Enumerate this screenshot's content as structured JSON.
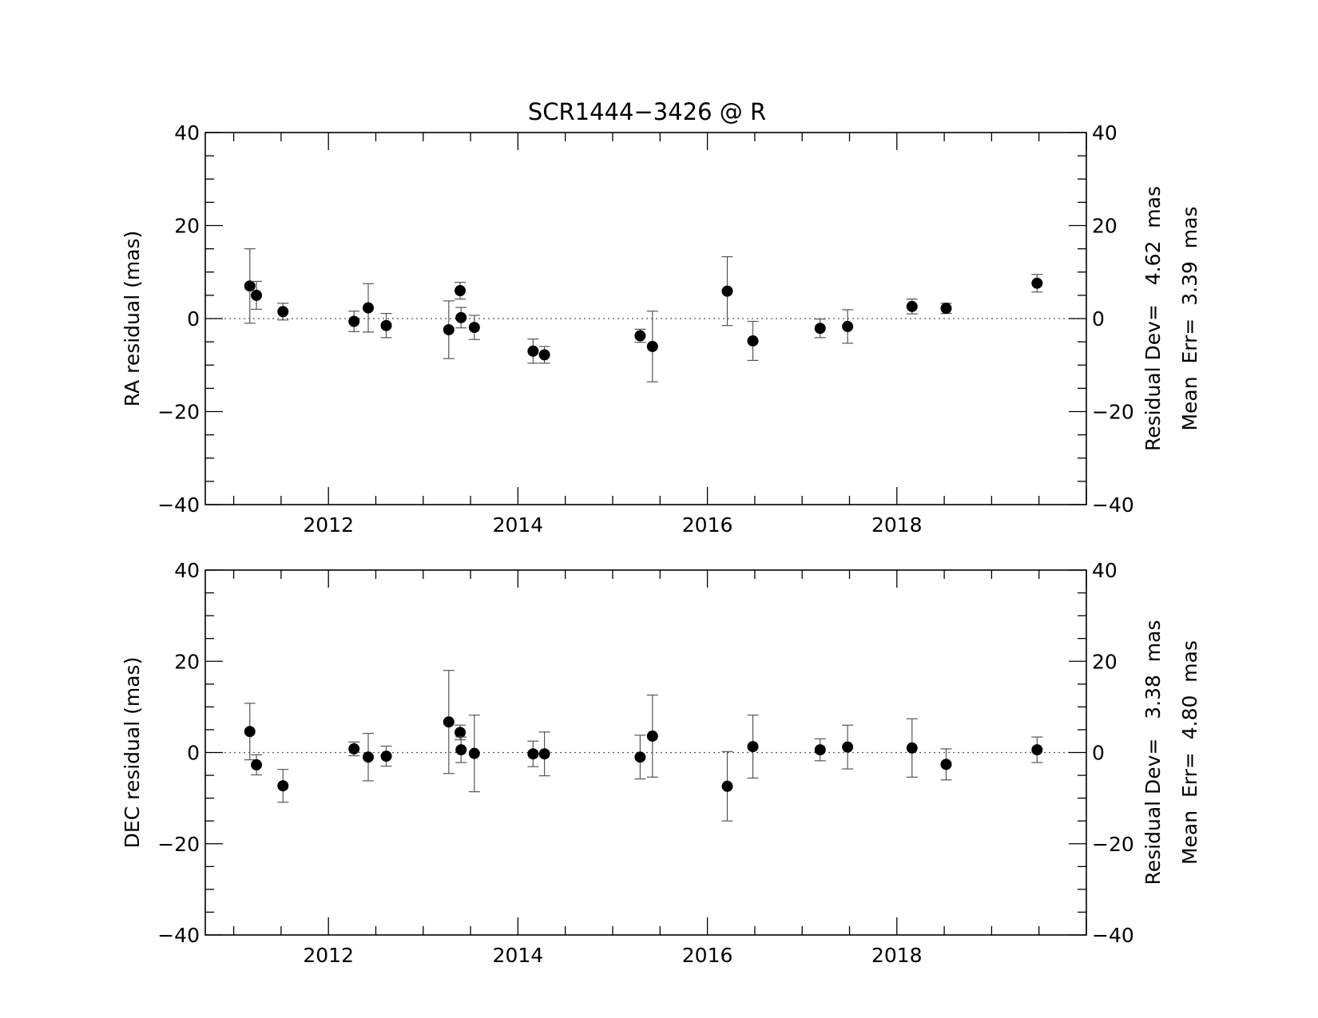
{
  "chart_data": [
    {
      "type": "scatter",
      "title": "SCR1444−3426 @ R",
      "ylabel": "RA residual (mas)",
      "xlim": [
        2010.7,
        2020.0
      ],
      "ylim": [
        -40,
        40
      ],
      "x_ticks": [
        2012,
        2014,
        2016,
        2018
      ],
      "x_tick_labels": [
        "2012",
        "2014",
        "2016",
        "2018"
      ],
      "y_ticks": [
        -40,
        -20,
        0,
        20,
        40
      ],
      "y_tick_labels": [
        "−40",
        "−20",
        "0",
        "20",
        "40"
      ],
      "stats": {
        "residual_dev": "Residual Dev=   4.62  mas",
        "mean_err": "Mean  Err=  3.39  mas"
      },
      "points": [
        {
          "x": 2011.17,
          "y": 7.0,
          "err": 8.0
        },
        {
          "x": 2011.24,
          "y": 5.0,
          "err": 3.0
        },
        {
          "x": 2011.52,
          "y": 1.5,
          "err": 1.8
        },
        {
          "x": 2012.27,
          "y": -0.6,
          "err": 2.2
        },
        {
          "x": 2012.42,
          "y": 2.3,
          "err": 5.2
        },
        {
          "x": 2012.61,
          "y": -1.5,
          "err": 2.6
        },
        {
          "x": 2013.27,
          "y": -2.4,
          "err": 6.2
        },
        {
          "x": 2013.39,
          "y": 6.0,
          "err": 1.8
        },
        {
          "x": 2013.4,
          "y": 0.2,
          "err": 2.2
        },
        {
          "x": 2013.54,
          "y": -1.9,
          "err": 2.6
        },
        {
          "x": 2014.16,
          "y": -7.0,
          "err": 2.6
        },
        {
          "x": 2014.28,
          "y": -7.8,
          "err": 1.8
        },
        {
          "x": 2015.29,
          "y": -3.7,
          "err": 1.4
        },
        {
          "x": 2015.42,
          "y": -6.0,
          "err": 7.6
        },
        {
          "x": 2016.21,
          "y": 5.9,
          "err": 7.4
        },
        {
          "x": 2016.48,
          "y": -4.8,
          "err": 4.2
        },
        {
          "x": 2017.19,
          "y": -2.1,
          "err": 2.0
        },
        {
          "x": 2017.48,
          "y": -1.7,
          "err": 3.6
        },
        {
          "x": 2018.16,
          "y": 2.6,
          "err": 1.6
        },
        {
          "x": 2018.52,
          "y": 2.2,
          "err": 1.1
        },
        {
          "x": 2019.48,
          "y": 7.6,
          "err": 1.9
        }
      ]
    },
    {
      "type": "scatter",
      "title": "",
      "ylabel": "DEC residual (mas)",
      "xlim": [
        2010.7,
        2020.0
      ],
      "ylim": [
        -40,
        40
      ],
      "x_ticks": [
        2012,
        2014,
        2016,
        2018
      ],
      "x_tick_labels": [
        "2012",
        "2014",
        "2016",
        "2018"
      ],
      "y_ticks": [
        -40,
        -20,
        0,
        20,
        40
      ],
      "y_tick_labels": [
        "−40",
        "−20",
        "0",
        "20",
        "40"
      ],
      "stats": {
        "residual_dev": "Residual Dev=   3.38  mas",
        "mean_err": "Mean  Err=  4.80  mas"
      },
      "points": [
        {
          "x": 2011.17,
          "y": 4.6,
          "err": 6.2
        },
        {
          "x": 2011.24,
          "y": -2.7,
          "err": 2.2
        },
        {
          "x": 2011.52,
          "y": -7.3,
          "err": 3.6
        },
        {
          "x": 2012.27,
          "y": 0.8,
          "err": 1.5
        },
        {
          "x": 2012.42,
          "y": -1.0,
          "err": 5.2
        },
        {
          "x": 2012.61,
          "y": -0.8,
          "err": 2.2
        },
        {
          "x": 2013.27,
          "y": 6.7,
          "err": 11.3
        },
        {
          "x": 2013.39,
          "y": 4.4,
          "err": 1.6
        },
        {
          "x": 2013.4,
          "y": 0.6,
          "err": 2.8
        },
        {
          "x": 2013.54,
          "y": -0.2,
          "err": 8.4
        },
        {
          "x": 2014.16,
          "y": -0.3,
          "err": 2.8
        },
        {
          "x": 2014.28,
          "y": -0.3,
          "err": 4.8
        },
        {
          "x": 2015.29,
          "y": -1.0,
          "err": 4.8
        },
        {
          "x": 2015.42,
          "y": 3.6,
          "err": 9.0
        },
        {
          "x": 2016.21,
          "y": -7.4,
          "err": 7.6
        },
        {
          "x": 2016.48,
          "y": 1.3,
          "err": 6.9
        },
        {
          "x": 2017.19,
          "y": 0.6,
          "err": 2.4
        },
        {
          "x": 2017.48,
          "y": 1.2,
          "err": 4.8
        },
        {
          "x": 2018.16,
          "y": 1.0,
          "err": 6.4
        },
        {
          "x": 2018.52,
          "y": -2.6,
          "err": 3.4
        },
        {
          "x": 2019.48,
          "y": 0.6,
          "err": 2.8
        }
      ]
    }
  ]
}
